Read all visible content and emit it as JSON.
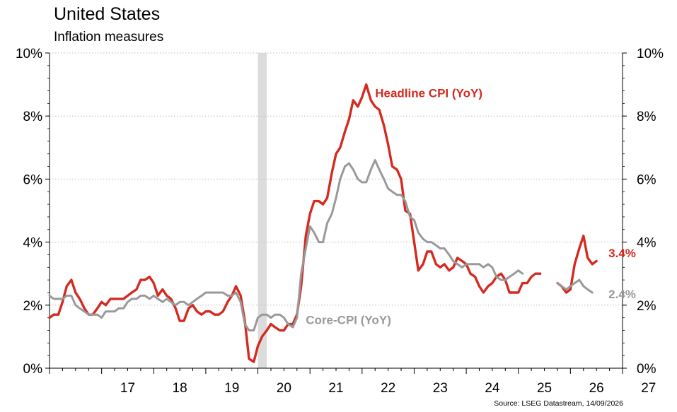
{
  "title": "United States",
  "subtitle": "Inflation measures",
  "source": "Source: LSEG Datastream, 14/09/2026",
  "colors": {
    "headline": "#d42a20",
    "core": "#999999",
    "recession": "#dcdcdc",
    "axis": "#000000"
  },
  "chart_data": {
    "type": "line",
    "title": "United States",
    "subtitle": "Inflation measures",
    "x_tick_labels": [
      "17",
      "18",
      "19",
      "20",
      "21",
      "22",
      "23",
      "24",
      "25",
      "26",
      "27"
    ],
    "x_tick_years": [
      2017,
      2018,
      2019,
      2020,
      2021,
      2022,
      2023,
      2024,
      2025,
      2026,
      2027
    ],
    "xlim": [
      2016.0,
      2027.0
    ],
    "ylim": [
      0,
      10
    ],
    "y_ticks": [
      0,
      2,
      4,
      6,
      8,
      10
    ],
    "y_tick_labels": [
      "0%",
      "2%",
      "4%",
      "6%",
      "8%",
      "10%"
    ],
    "y_axis_both_sides": true,
    "grid": "horizontal dotted",
    "shaded_periods": [
      [
        2020.0,
        2020.17
      ]
    ],
    "series": [
      {
        "name": "Headline CPI (YoY)",
        "color": "#d42a20",
        "end_label": "3.4%",
        "segments": [
          [
            [
              2016.0,
              1.6
            ],
            [
              2016.08,
              1.7
            ],
            [
              2016.17,
              1.7
            ],
            [
              2016.25,
              2.1
            ],
            [
              2016.33,
              2.6
            ],
            [
              2016.42,
              2.8
            ],
            [
              2016.5,
              2.4
            ],
            [
              2016.58,
              2.2
            ],
            [
              2016.67,
              1.9
            ],
            [
              2016.75,
              1.7
            ],
            [
              2016.83,
              1.7
            ],
            [
              2016.92,
              1.9
            ],
            [
              2017.0,
              2.1
            ],
            [
              2017.08,
              2.0
            ],
            [
              2017.17,
              2.2
            ],
            [
              2017.25,
              2.2
            ],
            [
              2017.33,
              2.2
            ],
            [
              2017.42,
              2.2
            ],
            [
              2017.5,
              2.3
            ],
            [
              2017.58,
              2.4
            ],
            [
              2017.67,
              2.5
            ],
            [
              2017.75,
              2.8
            ],
            [
              2017.83,
              2.8
            ],
            [
              2017.92,
              2.9
            ],
            [
              2018.0,
              2.7
            ],
            [
              2018.08,
              2.3
            ],
            [
              2018.17,
              2.5
            ],
            [
              2018.25,
              2.3
            ],
            [
              2018.33,
              2.2
            ],
            [
              2018.42,
              1.9
            ],
            [
              2018.5,
              1.5
            ],
            [
              2018.58,
              1.5
            ],
            [
              2018.67,
              1.9
            ],
            [
              2018.75,
              2.0
            ],
            [
              2018.83,
              1.8
            ],
            [
              2018.92,
              1.7
            ],
            [
              2019.0,
              1.8
            ],
            [
              2019.08,
              1.8
            ],
            [
              2019.17,
              1.7
            ],
            [
              2019.25,
              1.7
            ],
            [
              2019.33,
              1.8
            ],
            [
              2019.42,
              2.1
            ],
            [
              2019.5,
              2.3
            ],
            [
              2019.58,
              2.6
            ],
            [
              2019.67,
              2.3
            ],
            [
              2019.75,
              1.5
            ],
            [
              2019.83,
              0.3
            ],
            [
              2019.92,
              0.2
            ],
            [
              2020.0,
              0.7
            ],
            [
              2020.08,
              1.0
            ],
            [
              2020.17,
              1.2
            ],
            [
              2020.25,
              1.4
            ],
            [
              2020.33,
              1.3
            ],
            [
              2020.42,
              1.2
            ],
            [
              2020.5,
              1.2
            ],
            [
              2020.58,
              1.4
            ],
            [
              2020.67,
              1.4
            ],
            [
              2020.75,
              1.7
            ],
            [
              2020.83,
              2.6
            ],
            [
              2020.92,
              4.2
            ],
            [
              2021.0,
              4.9
            ],
            [
              2021.08,
              5.3
            ],
            [
              2021.17,
              5.3
            ],
            [
              2021.25,
              5.2
            ],
            [
              2021.33,
              5.4
            ],
            [
              2021.42,
              6.2
            ],
            [
              2021.5,
              6.8
            ],
            [
              2021.58,
              7.0
            ],
            [
              2021.67,
              7.5
            ],
            [
              2021.75,
              7.9
            ],
            [
              2021.83,
              8.5
            ],
            [
              2021.92,
              8.3
            ],
            [
              2022.0,
              8.6
            ],
            [
              2022.08,
              9.0
            ],
            [
              2022.17,
              8.5
            ],
            [
              2022.25,
              8.3
            ],
            [
              2022.33,
              8.2
            ],
            [
              2022.42,
              7.7
            ],
            [
              2022.5,
              7.1
            ],
            [
              2022.58,
              6.4
            ],
            [
              2022.67,
              6.3
            ],
            [
              2022.75,
              6.0
            ],
            [
              2022.83,
              5.0
            ],
            [
              2022.92,
              4.9
            ],
            [
              2023.0,
              4.0
            ],
            [
              2023.08,
              3.1
            ],
            [
              2023.17,
              3.3
            ],
            [
              2023.25,
              3.7
            ],
            [
              2023.33,
              3.7
            ],
            [
              2023.42,
              3.3
            ],
            [
              2023.5,
              3.2
            ],
            [
              2023.58,
              3.3
            ],
            [
              2023.67,
              3.1
            ],
            [
              2023.75,
              3.2
            ],
            [
              2023.83,
              3.5
            ],
            [
              2023.92,
              3.4
            ],
            [
              2024.0,
              3.3
            ],
            [
              2024.08,
              3.0
            ],
            [
              2024.17,
              2.9
            ],
            [
              2024.25,
              2.6
            ],
            [
              2024.33,
              2.4
            ],
            [
              2024.42,
              2.6
            ],
            [
              2024.5,
              2.7
            ],
            [
              2024.58,
              2.9
            ],
            [
              2024.67,
              3.0
            ],
            [
              2024.75,
              2.8
            ],
            [
              2024.83,
              2.4
            ],
            [
              2024.92,
              2.4
            ],
            [
              2025.0,
              2.4
            ],
            [
              2025.08,
              2.7
            ],
            [
              2025.17,
              2.7
            ],
            [
              2025.25,
              2.9
            ],
            [
              2025.33,
              3.0
            ],
            [
              2025.42,
              3.0
            ]
          ],
          [
            [
              2025.75,
              2.7
            ],
            [
              2025.83,
              2.6
            ],
            [
              2025.92,
              2.4
            ],
            [
              2026.0,
              2.5
            ],
            [
              2026.08,
              3.3
            ],
            [
              2026.17,
              3.8
            ],
            [
              2026.25,
              4.2
            ],
            [
              2026.33,
              3.5
            ],
            [
              2026.42,
              3.3
            ],
            [
              2026.5,
              3.4
            ]
          ]
        ]
      },
      {
        "name": "Core-CPI (YoY)",
        "color": "#999999",
        "end_label": "2.4%",
        "segments": [
          [
            [
              2016.0,
              2.3
            ],
            [
              2016.08,
              2.2
            ],
            [
              2016.17,
              2.2
            ],
            [
              2016.25,
              2.2
            ],
            [
              2016.33,
              2.3
            ],
            [
              2016.42,
              2.3
            ],
            [
              2016.5,
              2.0
            ],
            [
              2016.58,
              1.9
            ],
            [
              2016.67,
              1.8
            ],
            [
              2016.75,
              1.7
            ],
            [
              2016.83,
              1.7
            ],
            [
              2016.92,
              1.7
            ],
            [
              2017.0,
              1.6
            ],
            [
              2017.08,
              1.8
            ],
            [
              2017.17,
              1.8
            ],
            [
              2017.25,
              1.8
            ],
            [
              2017.33,
              1.9
            ],
            [
              2017.42,
              1.9
            ],
            [
              2017.5,
              2.1
            ],
            [
              2017.58,
              2.2
            ],
            [
              2017.67,
              2.2
            ],
            [
              2017.75,
              2.3
            ],
            [
              2017.83,
              2.3
            ],
            [
              2017.92,
              2.2
            ],
            [
              2018.0,
              2.3
            ],
            [
              2018.08,
              2.2
            ],
            [
              2018.17,
              2.1
            ],
            [
              2018.25,
              2.2
            ],
            [
              2018.33,
              2.1
            ],
            [
              2018.42,
              2.0
            ],
            [
              2018.5,
              2.1
            ],
            [
              2018.58,
              2.1
            ],
            [
              2018.67,
              2.0
            ],
            [
              2018.75,
              2.1
            ],
            [
              2018.83,
              2.2
            ],
            [
              2018.92,
              2.3
            ],
            [
              2019.0,
              2.4
            ],
            [
              2019.08,
              2.4
            ],
            [
              2019.17,
              2.4
            ],
            [
              2019.25,
              2.4
            ],
            [
              2019.33,
              2.4
            ],
            [
              2019.42,
              2.3
            ],
            [
              2019.5,
              2.3
            ],
            [
              2019.58,
              2.4
            ],
            [
              2019.67,
              2.1
            ],
            [
              2019.75,
              1.4
            ],
            [
              2019.83,
              1.2
            ],
            [
              2019.92,
              1.2
            ],
            [
              2020.0,
              1.6
            ],
            [
              2020.08,
              1.7
            ],
            [
              2020.17,
              1.7
            ],
            [
              2020.25,
              1.6
            ],
            [
              2020.33,
              1.7
            ],
            [
              2020.42,
              1.7
            ],
            [
              2020.5,
              1.6
            ],
            [
              2020.58,
              1.4
            ],
            [
              2020.67,
              1.3
            ],
            [
              2020.75,
              1.6
            ],
            [
              2020.83,
              3.0
            ],
            [
              2020.92,
              3.8
            ],
            [
              2021.0,
              4.5
            ],
            [
              2021.08,
              4.3
            ],
            [
              2021.17,
              4.0
            ],
            [
              2021.25,
              4.0
            ],
            [
              2021.33,
              4.6
            ],
            [
              2021.42,
              4.9
            ],
            [
              2021.5,
              5.4
            ],
            [
              2021.58,
              6.0
            ],
            [
              2021.67,
              6.4
            ],
            [
              2021.75,
              6.5
            ],
            [
              2021.83,
              6.3
            ],
            [
              2021.92,
              6.0
            ],
            [
              2022.0,
              5.9
            ],
            [
              2022.08,
              5.9
            ],
            [
              2022.17,
              6.3
            ],
            [
              2022.25,
              6.6
            ],
            [
              2022.33,
              6.3
            ],
            [
              2022.42,
              6.0
            ],
            [
              2022.5,
              5.7
            ],
            [
              2022.58,
              5.6
            ],
            [
              2022.67,
              5.5
            ],
            [
              2022.75,
              5.5
            ],
            [
              2022.83,
              5.3
            ],
            [
              2022.92,
              4.8
            ],
            [
              2023.0,
              4.7
            ],
            [
              2023.08,
              4.3
            ],
            [
              2023.17,
              4.1
            ],
            [
              2023.25,
              4.0
            ],
            [
              2023.33,
              4.0
            ],
            [
              2023.42,
              3.9
            ],
            [
              2023.5,
              3.8
            ],
            [
              2023.58,
              3.8
            ],
            [
              2023.67,
              3.6
            ],
            [
              2023.75,
              3.4
            ],
            [
              2023.83,
              3.3
            ],
            [
              2023.92,
              3.2
            ],
            [
              2024.0,
              3.3
            ],
            [
              2024.08,
              3.3
            ],
            [
              2024.17,
              3.3
            ],
            [
              2024.25,
              3.3
            ],
            [
              2024.33,
              3.2
            ],
            [
              2024.42,
              3.3
            ],
            [
              2024.5,
              3.2
            ],
            [
              2024.58,
              2.9
            ],
            [
              2024.67,
              2.8
            ],
            [
              2024.75,
              2.8
            ],
            [
              2024.83,
              2.9
            ],
            [
              2024.92,
              3.0
            ],
            [
              2025.0,
              3.1
            ],
            [
              2025.08,
              3.0
            ]
          ],
          [
            [
              2025.75,
              2.7
            ],
            [
              2025.83,
              2.6
            ],
            [
              2025.92,
              2.5
            ],
            [
              2026.0,
              2.6
            ],
            [
              2026.08,
              2.7
            ],
            [
              2026.17,
              2.8
            ],
            [
              2026.25,
              2.6
            ],
            [
              2026.33,
              2.5
            ],
            [
              2026.42,
              2.4
            ]
          ]
        ]
      }
    ]
  }
}
